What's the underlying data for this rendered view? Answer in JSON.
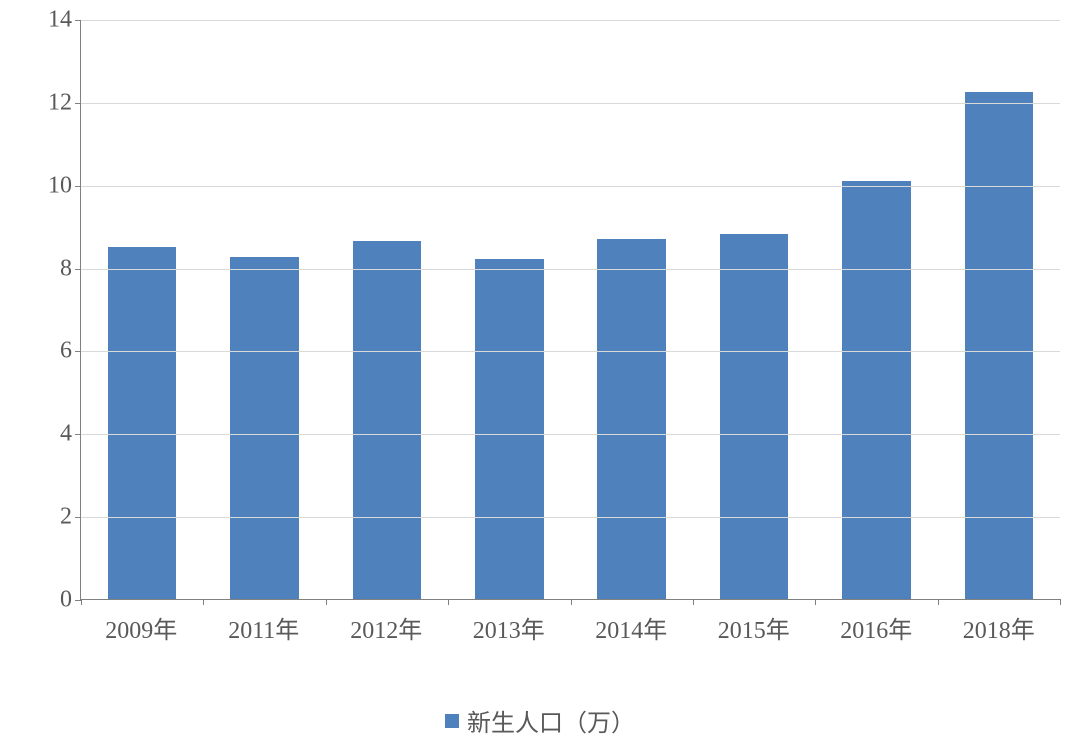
{
  "chart": {
    "type": "bar",
    "categories": [
      "2009年",
      "2011年",
      "2012年",
      "2013年",
      "2014年",
      "2015年",
      "2016年",
      "2018年"
    ],
    "values": [
      8.5,
      8.25,
      8.65,
      8.2,
      8.7,
      8.8,
      10.1,
      12.25
    ],
    "bar_color": "#4F81BD",
    "ylim": [
      0,
      14
    ],
    "ytick_step": 2,
    "y_ticks": [
      0,
      2,
      4,
      6,
      8,
      10,
      12,
      14
    ],
    "grid_color": "#D9D9D9",
    "axis_color": "#808080",
    "text_color": "#595959",
    "background_color": "#ffffff",
    "label_fontsize": 24,
    "bar_width_ratio": 0.56,
    "legend": {
      "label": "新生人口（万）",
      "swatch_color": "#4F81BD",
      "position": "bottom"
    }
  }
}
